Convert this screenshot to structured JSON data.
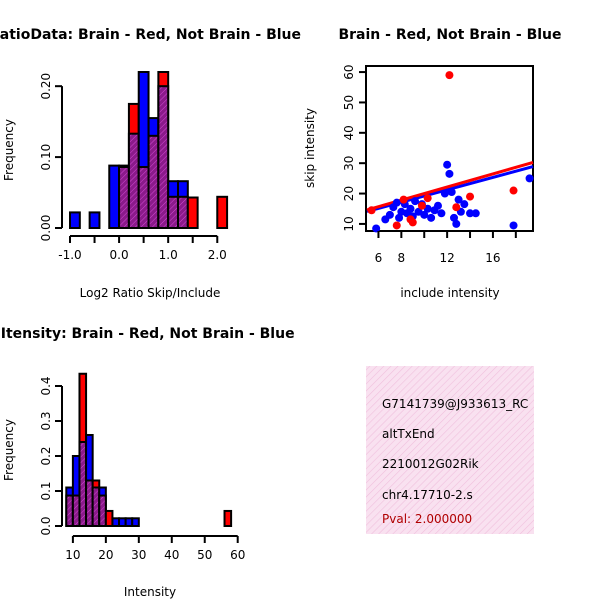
{
  "colors": {
    "brain": "#ff0000",
    "not_brain": "#0000ff",
    "overlap": "#8b1a8b",
    "axis": "#000000",
    "panel_bg": "#f7d7ec",
    "pval": "#b00000"
  },
  "chart_data": [
    {
      "id": "ratio",
      "type": "histogram",
      "title": "RatioData: Brain - Red, Not Brain - Blue",
      "xlabel": "Log2 Ratio Skip/Include",
      "ylabel": "Frequency",
      "xlim": [
        -1.0,
        2.3
      ],
      "ylim": [
        0,
        0.22
      ],
      "xticks": [
        -1.0,
        0.0,
        1.0,
        2.0
      ],
      "xtick_labels": [
        "-1.0",
        "0.0",
        "1.0",
        "2.0"
      ],
      "yticks": [
        0.0,
        0.1,
        0.2
      ],
      "ytick_labels": [
        "0.00",
        "0.10",
        "0.20"
      ],
      "bins": [
        {
          "x0": -1.0,
          "x1": -0.8,
          "brain": 0.0,
          "not_brain": 0.022
        },
        {
          "x0": -0.8,
          "x1": -0.6,
          "brain": 0.0,
          "not_brain": 0.0
        },
        {
          "x0": -0.6,
          "x1": -0.4,
          "brain": 0.0,
          "not_brain": 0.022
        },
        {
          "x0": -0.4,
          "x1": -0.2,
          "brain": 0.0,
          "not_brain": 0.0
        },
        {
          "x0": -0.2,
          "x1": 0.0,
          "brain": 0.0,
          "not_brain": 0.088
        },
        {
          "x0": 0.0,
          "x1": 0.2,
          "brain": 0.086,
          "not_brain": 0.088
        },
        {
          "x0": 0.2,
          "x1": 0.4,
          "brain": 0.175,
          "not_brain": 0.133
        },
        {
          "x0": 0.4,
          "x1": 0.6,
          "brain": 0.086,
          "not_brain": 0.22
        },
        {
          "x0": 0.6,
          "x1": 0.8,
          "brain": 0.13,
          "not_brain": 0.155
        },
        {
          "x0": 0.8,
          "x1": 1.0,
          "brain": 0.22,
          "not_brain": 0.2
        },
        {
          "x0": 1.0,
          "x1": 1.2,
          "brain": 0.044,
          "not_brain": 0.066
        },
        {
          "x0": 1.2,
          "x1": 1.4,
          "brain": 0.044,
          "not_brain": 0.066
        },
        {
          "x0": 1.4,
          "x1": 1.6,
          "brain": 0.043,
          "not_brain": 0.0
        },
        {
          "x0": 1.6,
          "x1": 1.8,
          "brain": 0.0,
          "not_brain": 0.0
        },
        {
          "x0": 1.8,
          "x1": 2.0,
          "brain": 0.0,
          "not_brain": 0.0
        },
        {
          "x0": 2.0,
          "x1": 2.2,
          "brain": 0.044,
          "not_brain": 0.0
        }
      ]
    },
    {
      "id": "scatter",
      "type": "scatter",
      "title": "Brain - Red, Not Brain - Blue",
      "xlabel": "include intensity",
      "ylabel": "skip intensity",
      "xlim": [
        5,
        19.5
      ],
      "ylim": [
        8,
        62
      ],
      "xticks": [
        6,
        8,
        12,
        16
      ],
      "xtick_labels": [
        "6",
        "8",
        "12",
        "16"
      ],
      "yticks": [
        10,
        20,
        30,
        40,
        50,
        60
      ],
      "ytick_labels": [
        "10",
        "20",
        "30",
        "40",
        "50",
        "60"
      ],
      "series": [
        {
          "name": "Brain",
          "color_key": "brain",
          "points": [
            [
              5.4,
              14.5
            ],
            [
              7.6,
              9.5
            ],
            [
              8.2,
              18.0
            ],
            [
              8.8,
              11.5
            ],
            [
              9.0,
              10.5
            ],
            [
              9.8,
              16.0
            ],
            [
              10.3,
              18.5
            ],
            [
              12.2,
              59.0
            ],
            [
              12.8,
              15.5
            ],
            [
              14.0,
              19.0
            ],
            [
              17.8,
              21.0
            ]
          ],
          "fit": {
            "slope": 1.08,
            "intercept": 9.2
          }
        },
        {
          "name": "Not Brain",
          "color_key": "not_brain",
          "points": [
            [
              5.8,
              8.5
            ],
            [
              6.6,
              11.5
            ],
            [
              7.0,
              13.0
            ],
            [
              7.3,
              15.5
            ],
            [
              7.6,
              17.0
            ],
            [
              7.8,
              12.0
            ],
            [
              8.0,
              14.0
            ],
            [
              8.3,
              16.5
            ],
            [
              8.5,
              13.5
            ],
            [
              8.8,
              15.0
            ],
            [
              9.0,
              12.5
            ],
            [
              9.2,
              17.5
            ],
            [
              9.5,
              14.0
            ],
            [
              9.8,
              16.5
            ],
            [
              10.0,
              13.0
            ],
            [
              10.3,
              15.0
            ],
            [
              10.6,
              12.0
            ],
            [
              10.9,
              14.5
            ],
            [
              11.2,
              16.0
            ],
            [
              11.5,
              13.5
            ],
            [
              11.8,
              20.0
            ],
            [
              12.0,
              29.5
            ],
            [
              12.2,
              26.5
            ],
            [
              12.4,
              20.5
            ],
            [
              12.6,
              12.0
            ],
            [
              12.8,
              10.0
            ],
            [
              13.0,
              18.0
            ],
            [
              13.2,
              14.0
            ],
            [
              13.5,
              16.5
            ],
            [
              14.0,
              13.5
            ],
            [
              14.5,
              13.5
            ],
            [
              17.8,
              9.5
            ],
            [
              19.2,
              25.0
            ]
          ],
          "fit": {
            "slope": 1.02,
            "intercept": 9.0
          }
        }
      ]
    },
    {
      "id": "intensity",
      "type": "histogram",
      "title": "Gene Itensity: Brain - Red, Not Brain - Blue",
      "xlabel": "Intensity",
      "ylabel": "Frequency",
      "xlim": [
        7,
        61
      ],
      "ylim": [
        0,
        0.44
      ],
      "xticks": [
        10,
        20,
        30,
        40,
        50,
        60
      ],
      "xtick_labels": [
        "10",
        "20",
        "30",
        "40",
        "50",
        "60"
      ],
      "yticks": [
        0.0,
        0.1,
        0.2,
        0.3,
        0.4
      ],
      "ytick_labels": [
        "0.0",
        "0.1",
        "0.2",
        "0.3",
        "0.4"
      ],
      "bins": [
        {
          "x0": 8,
          "x1": 10,
          "brain": 0.087,
          "not_brain": 0.11
        },
        {
          "x0": 10,
          "x1": 12,
          "brain": 0.087,
          "not_brain": 0.2
        },
        {
          "x0": 12,
          "x1": 14,
          "brain": 0.435,
          "not_brain": 0.24
        },
        {
          "x0": 14,
          "x1": 16,
          "brain": 0.13,
          "not_brain": 0.26
        },
        {
          "x0": 16,
          "x1": 18,
          "brain": 0.13,
          "not_brain": 0.11
        },
        {
          "x0": 18,
          "x1": 20,
          "brain": 0.087,
          "not_brain": 0.11
        },
        {
          "x0": 20,
          "x1": 22,
          "brain": 0.043,
          "not_brain": 0.0
        },
        {
          "x0": 22,
          "x1": 24,
          "brain": 0.0,
          "not_brain": 0.022
        },
        {
          "x0": 24,
          "x1": 26,
          "brain": 0.0,
          "not_brain": 0.022
        },
        {
          "x0": 26,
          "x1": 28,
          "brain": 0.0,
          "not_brain": 0.022
        },
        {
          "x0": 28,
          "x1": 30,
          "brain": 0.0,
          "not_brain": 0.022
        },
        {
          "x0": 30,
          "x1": 32,
          "brain": 0.0,
          "not_brain": 0.0
        },
        {
          "x0": 56,
          "x1": 58,
          "brain": 0.043,
          "not_brain": 0.0
        }
      ]
    }
  ],
  "info_panel": {
    "lines": [
      "G7141739@J933613_RC",
      "altTxEnd",
      "2210012G02Rik",
      "chr4.17710-2.s"
    ],
    "pval": "Pval: 2.000000"
  }
}
